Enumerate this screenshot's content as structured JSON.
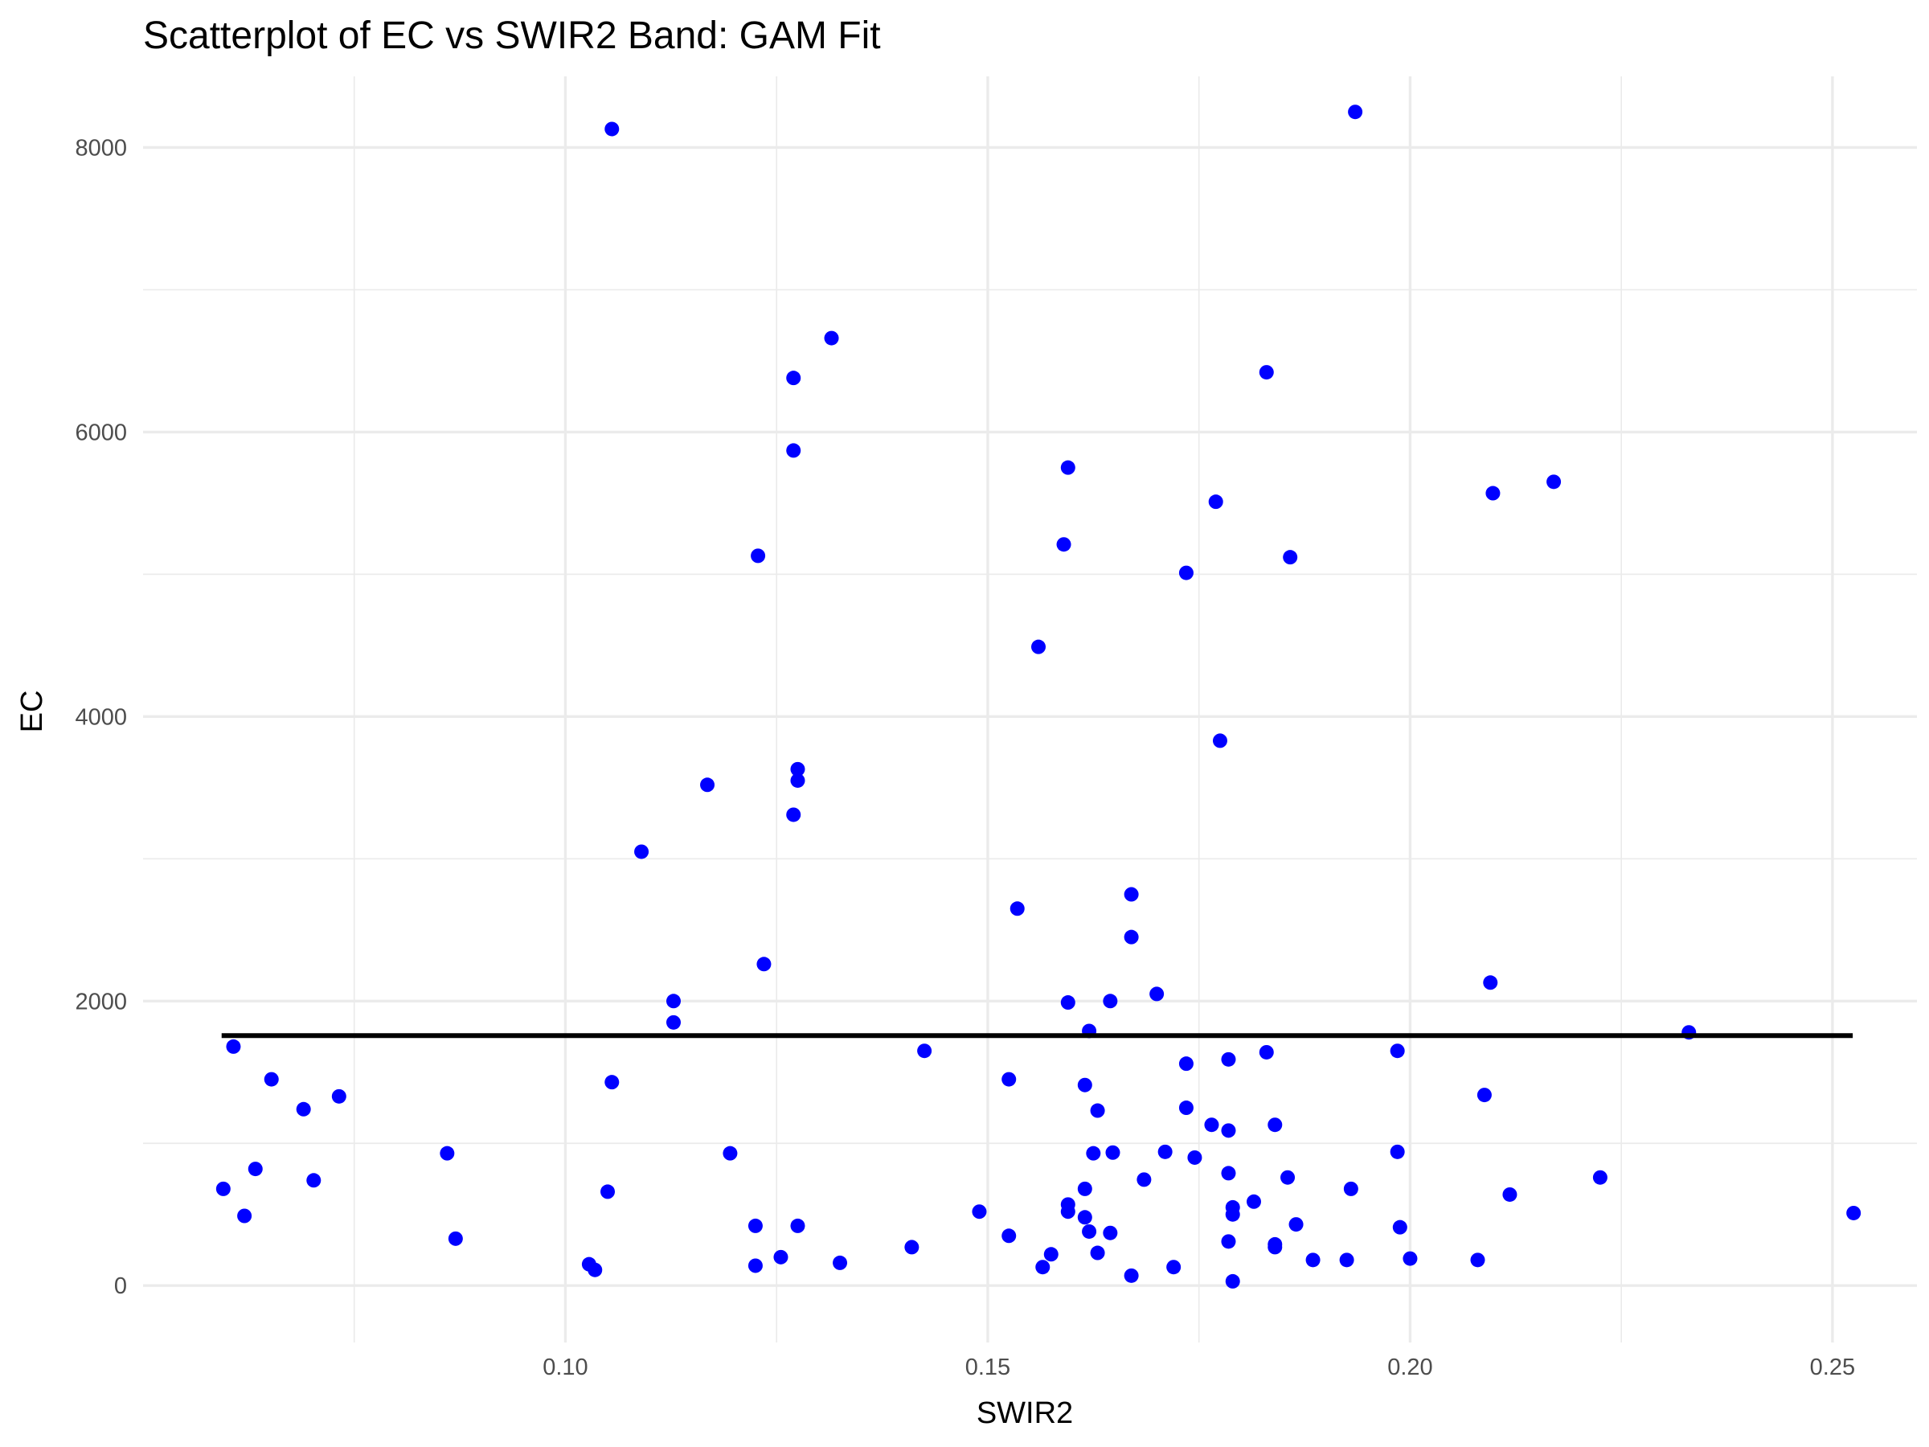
{
  "chart_data": {
    "type": "scatter",
    "title": "Scatterplot of EC vs SWIR2 Band: GAM Fit",
    "xlabel": "SWIR2",
    "ylabel": "EC",
    "xlim": [
      0.05,
      0.26
    ],
    "ylim": [
      -400,
      8500
    ],
    "xticks": [
      0.1,
      0.15,
      0.2,
      0.25
    ],
    "xtick_labels": [
      "0.10",
      "0.15",
      "0.20",
      "0.25"
    ],
    "yticks": [
      0,
      2000,
      4000,
      6000,
      8000
    ],
    "ytick_labels": [
      "0",
      "2000",
      "4000",
      "6000",
      "8000"
    ],
    "grid": true,
    "point_color": "#0000ff",
    "line_color": "#000000",
    "fit_line": {
      "x": [
        0.0593,
        0.2524
      ],
      "y": [
        1757,
        1757
      ]
    },
    "points": [
      [
        0.1055,
        8130
      ],
      [
        0.1935,
        8250
      ],
      [
        0.1315,
        6660
      ],
      [
        0.127,
        6380
      ],
      [
        0.183,
        6420
      ],
      [
        0.127,
        5870
      ],
      [
        0.1595,
        5750
      ],
      [
        0.177,
        5510
      ],
      [
        0.2098,
        5570
      ],
      [
        0.217,
        5650
      ],
      [
        0.1228,
        5130
      ],
      [
        0.159,
        5210
      ],
      [
        0.1858,
        5120
      ],
      [
        0.1735,
        5010
      ],
      [
        0.156,
        4490
      ],
      [
        0.1775,
        3830
      ],
      [
        0.1275,
        3630
      ],
      [
        0.1275,
        3550
      ],
      [
        0.1168,
        3520
      ],
      [
        0.127,
        3310
      ],
      [
        0.109,
        3050
      ],
      [
        0.167,
        2750
      ],
      [
        0.1535,
        2650
      ],
      [
        0.167,
        2450
      ],
      [
        0.1235,
        2260
      ],
      [
        0.2095,
        2130
      ],
      [
        0.1128,
        2000
      ],
      [
        0.1595,
        1990
      ],
      [
        0.1645,
        2000
      ],
      [
        0.17,
        2050
      ],
      [
        0.1128,
        1850
      ],
      [
        0.162,
        1790
      ],
      [
        0.233,
        1780
      ],
      [
        0.0607,
        1680
      ],
      [
        0.1425,
        1650
      ],
      [
        0.183,
        1640
      ],
      [
        0.1985,
        1650
      ],
      [
        0.1735,
        1560
      ],
      [
        0.1785,
        1590
      ],
      [
        0.0652,
        1450
      ],
      [
        0.1055,
        1430
      ],
      [
        0.1525,
        1450
      ],
      [
        0.1615,
        1410
      ],
      [
        0.0732,
        1330
      ],
      [
        0.2088,
        1340
      ],
      [
        0.069,
        1240
      ],
      [
        0.163,
        1230
      ],
      [
        0.1735,
        1250
      ],
      [
        0.1765,
        1130
      ],
      [
        0.1785,
        1090
      ],
      [
        0.184,
        1130
      ],
      [
        0.086,
        930
      ],
      [
        0.1195,
        930
      ],
      [
        0.1625,
        930
      ],
      [
        0.1648,
        935
      ],
      [
        0.171,
        940
      ],
      [
        0.1745,
        900
      ],
      [
        0.1985,
        940
      ],
      [
        0.0633,
        820
      ],
      [
        0.0702,
        740
      ],
      [
        0.1685,
        745
      ],
      [
        0.1785,
        790
      ],
      [
        0.1855,
        760
      ],
      [
        0.2225,
        760
      ],
      [
        0.0595,
        680
      ],
      [
        0.105,
        660
      ],
      [
        0.1615,
        680
      ],
      [
        0.193,
        680
      ],
      [
        0.2118,
        640
      ],
      [
        0.1595,
        570
      ],
      [
        0.179,
        550
      ],
      [
        0.1815,
        590
      ],
      [
        0.062,
        490
      ],
      [
        0.149,
        520
      ],
      [
        0.1595,
        520
      ],
      [
        0.1615,
        480
      ],
      [
        0.179,
        500
      ],
      [
        0.2525,
        510
      ],
      [
        0.1225,
        420
      ],
      [
        0.1275,
        420
      ],
      [
        0.1865,
        430
      ],
      [
        0.1988,
        410
      ],
      [
        0.087,
        330
      ],
      [
        0.1525,
        350
      ],
      [
        0.162,
        380
      ],
      [
        0.1645,
        370
      ],
      [
        0.1785,
        310
      ],
      [
        0.184,
        290
      ],
      [
        0.184,
        270
      ],
      [
        0.141,
        270
      ],
      [
        0.1255,
        200
      ],
      [
        0.1575,
        220
      ],
      [
        0.163,
        230
      ],
      [
        0.1885,
        180
      ],
      [
        0.1925,
        180
      ],
      [
        0.2,
        190
      ],
      [
        0.208,
        180
      ],
      [
        0.1028,
        150
      ],
      [
        0.1035,
        110
      ],
      [
        0.1225,
        140
      ],
      [
        0.1325,
        160
      ],
      [
        0.1565,
        130
      ],
      [
        0.172,
        130
      ],
      [
        0.167,
        70
      ],
      [
        0.179,
        30
      ]
    ]
  }
}
